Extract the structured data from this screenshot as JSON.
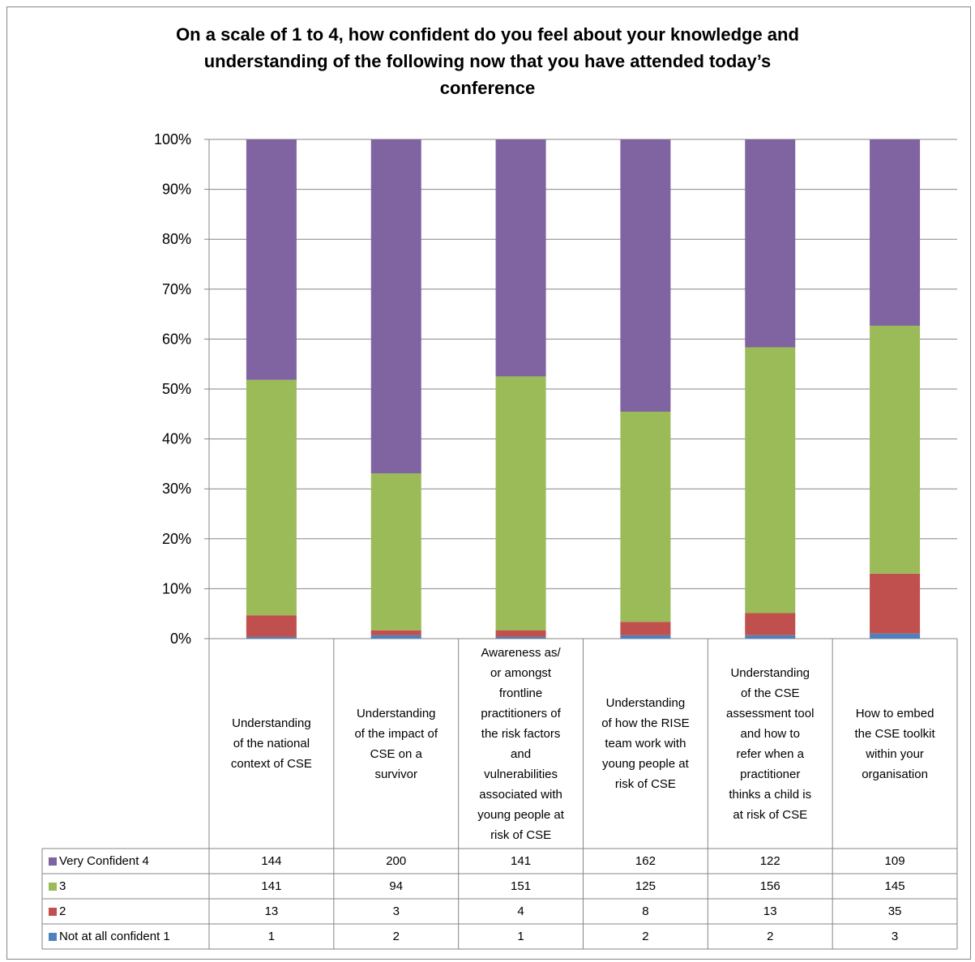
{
  "chart_data": {
    "type": "bar",
    "stacked": true,
    "normalized": true,
    "title_lines": [
      "On a scale of 1 to 4, how confident do you feel about your knowledge and",
      "understanding of the following now that you have attended today’s",
      "conference"
    ],
    "categories": [
      "Understanding of the national context of CSE",
      "Understanding of the impact of CSE on a survivor",
      "Awareness as/ or amongst frontline practitioners of the risk factors and vulnerabilities associated with young people at risk of CSE",
      "Understanding of how the RISE team work with young people at risk of CSE",
      "Understanding of the CSE assessment tool and how to refer when a practitioner thinks a child is at risk of CSE",
      "How to embed the CSE toolkit within your organisation"
    ],
    "category_lines": [
      [
        "Understanding",
        "of the national",
        "context of CSE"
      ],
      [
        "Understanding",
        "of the impact of",
        "CSE on a",
        "survivor"
      ],
      [
        "Awareness as/",
        "or amongst",
        "frontline",
        "practitioners of",
        "the risk factors",
        "and",
        "vulnerabilities",
        "associated with",
        "young people at",
        "risk of CSE"
      ],
      [
        "Understanding",
        "of how the RISE",
        "team work with",
        "young people at",
        "risk of CSE"
      ],
      [
        "Understanding",
        "of the CSE",
        "assessment tool",
        "and how to",
        "refer when a",
        "practitioner",
        "thinks a child is",
        "at risk of CSE"
      ],
      [
        "How to embed",
        "the CSE toolkit",
        "within your",
        "organisation"
      ]
    ],
    "series": [
      {
        "name": "Very Confident 4",
        "color": "#8064A2",
        "values": [
          144,
          200,
          141,
          162,
          122,
          109
        ]
      },
      {
        "name": "3",
        "color": "#9BBB59",
        "values": [
          141,
          94,
          151,
          125,
          156,
          145
        ]
      },
      {
        "name": "2",
        "color": "#C0504D",
        "values": [
          13,
          3,
          4,
          8,
          13,
          35
        ]
      },
      {
        "name": "Not at all confident 1",
        "color": "#4F81BD",
        "values": [
          1,
          2,
          1,
          2,
          2,
          3
        ]
      }
    ],
    "stack_order_bottom_to_top": [
      "Not at all confident 1",
      "2",
      "3",
      "Very Confident 4"
    ],
    "y_ticks": [
      "0%",
      "10%",
      "20%",
      "30%",
      "40%",
      "50%",
      "60%",
      "70%",
      "80%",
      "90%",
      "100%"
    ],
    "ylim": [
      0,
      100
    ],
    "grid": true,
    "legend": "data table below chart"
  }
}
